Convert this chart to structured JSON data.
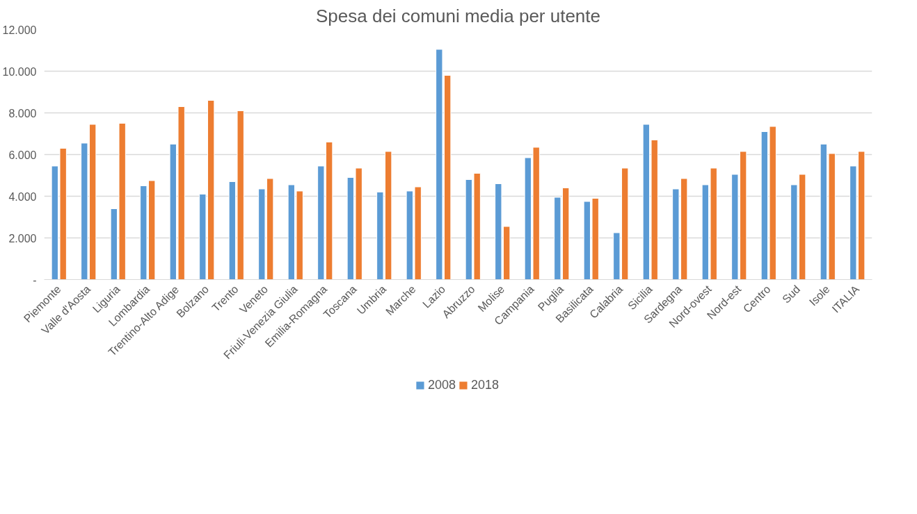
{
  "chart_data": {
    "type": "bar",
    "title": "Spesa dei comuni media per utente",
    "categories": [
      "Piemonte",
      "Valle d'Aosta",
      "Liguria",
      "Lombardia",
      "Trentino-Alto Adige",
      "Bolzano",
      "Trento",
      "Veneto",
      "Friuli-Venezia Giulia",
      "Emilia-Romagna",
      "Toscana",
      "Umbria",
      "Marche",
      "Lazio",
      "Abruzzo",
      "Molise",
      "Campania",
      "Puglia",
      "Basilicata",
      "Calabria",
      "Sicilia",
      "Sardegna",
      "Nord-ovest",
      "Nord-est",
      "Centro",
      "Sud",
      "Isole",
      "ITALIA"
    ],
    "series": [
      {
        "name": "2008",
        "color": "#5b9bd5",
        "values": [
          5450,
          6550,
          3400,
          4500,
          6500,
          4100,
          4700,
          4350,
          4550,
          5450,
          4900,
          4200,
          4250,
          11050,
          4800,
          4600,
          5850,
          3950,
          3750,
          2250,
          7450,
          4350,
          4550,
          5050,
          7100,
          4550,
          6500,
          5450
        ]
      },
      {
        "name": "2018",
        "color": "#ed7d31",
        "values": [
          6300,
          7450,
          7500,
          4750,
          8300,
          8600,
          8100,
          4850,
          4250,
          6600,
          5350,
          6150,
          4450,
          9800,
          5100,
          2550,
          6350,
          4400,
          3900,
          5350,
          6700,
          4850,
          5350,
          6150,
          7350,
          5050,
          6050,
          6150
        ]
      }
    ],
    "ylim": [
      0,
      12000
    ],
    "yticks": [
      {
        "value": 0,
        "label": "-"
      },
      {
        "value": 2000,
        "label": "2.000"
      },
      {
        "value": 4000,
        "label": "4.000"
      },
      {
        "value": 6000,
        "label": "6.000"
      },
      {
        "value": 8000,
        "label": "8.000"
      },
      {
        "value": 10000,
        "label": "10.000"
      },
      {
        "value": 12000,
        "label": "12.000"
      }
    ],
    "grid": "y",
    "legend": "bottom"
  }
}
